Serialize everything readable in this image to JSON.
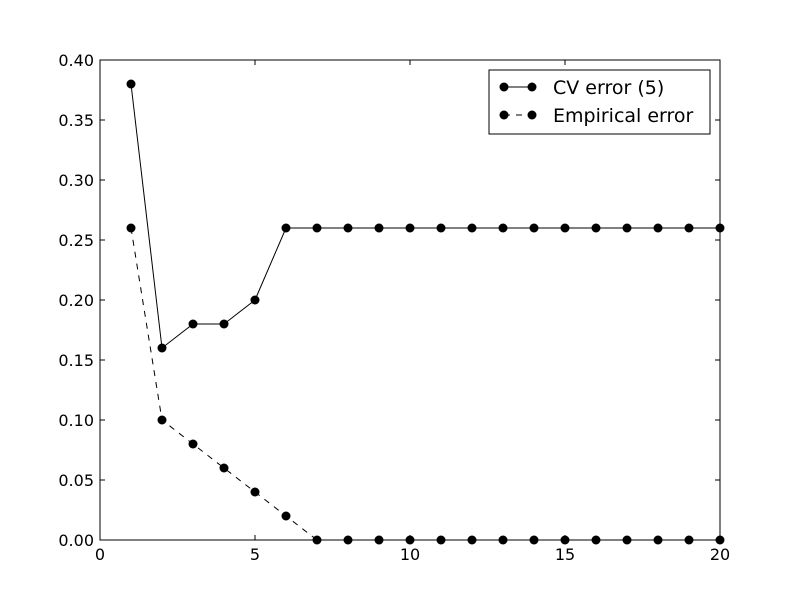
{
  "chart_data": {
    "type": "line",
    "title": "",
    "xlabel": "",
    "ylabel": "",
    "xlim": [
      0,
      20
    ],
    "ylim": [
      0.0,
      0.4
    ],
    "x_ticks": [
      "0",
      "5",
      "10",
      "15",
      "20"
    ],
    "y_ticks": [
      "0.00",
      "0.05",
      "0.10",
      "0.15",
      "0.20",
      "0.25",
      "0.30",
      "0.35",
      "0.40"
    ],
    "grid": false,
    "legend_position": "top-right",
    "x": [
      1,
      2,
      3,
      4,
      5,
      6,
      7,
      8,
      9,
      10,
      11,
      12,
      13,
      14,
      15,
      16,
      17,
      18,
      19,
      20
    ],
    "series": [
      {
        "name": "CV error (5)",
        "line_style": "solid",
        "color": "#000000",
        "values": [
          0.38,
          0.16,
          0.18,
          0.18,
          0.2,
          0.26,
          0.26,
          0.26,
          0.26,
          0.26,
          0.26,
          0.26,
          0.26,
          0.26,
          0.26,
          0.26,
          0.26,
          0.26,
          0.26,
          0.26
        ]
      },
      {
        "name": "Empirical error",
        "line_style": "dashed",
        "color": "#000000",
        "values": [
          0.26,
          0.1,
          0.08,
          0.06,
          0.04,
          0.02,
          0.0,
          0.0,
          0.0,
          0.0,
          0.0,
          0.0,
          0.0,
          0.0,
          0.0,
          0.0,
          0.0,
          0.0,
          0.0,
          0.0
        ]
      }
    ]
  }
}
